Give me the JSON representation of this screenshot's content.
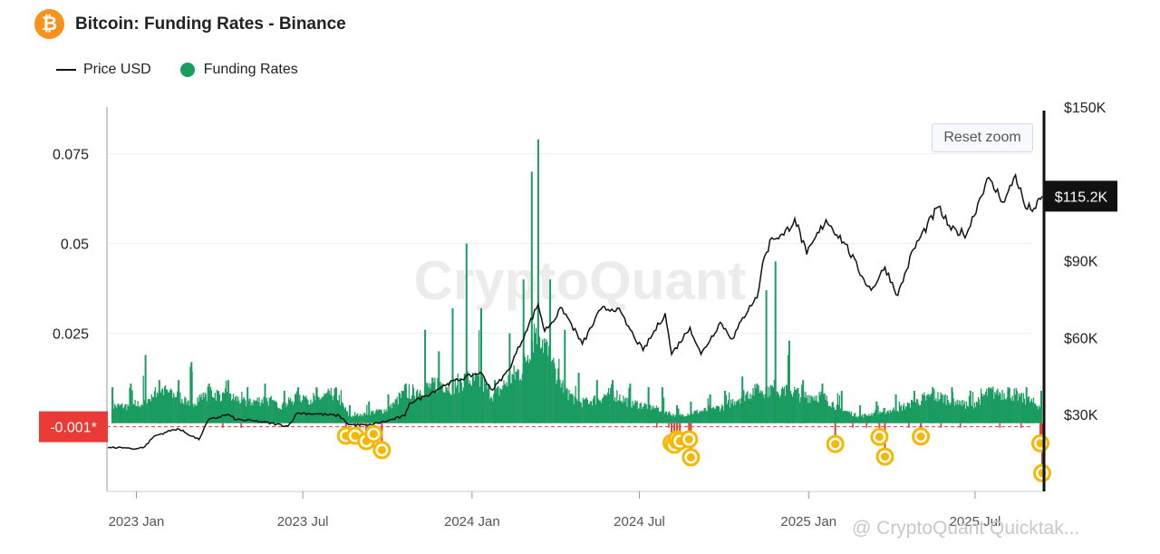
{
  "header": {
    "title": "Bitcoin: Funding Rates - Binance",
    "logo_icon": "bitcoin-icon",
    "logo_glyph": "₿"
  },
  "legend": [
    {
      "label": "Price USD",
      "type": "line",
      "color": "#111111"
    },
    {
      "label": "Funding Rates",
      "type": "dot",
      "color": "#1a9b60"
    }
  ],
  "reset_zoom_label": "Reset zoom",
  "watermark": "CryptoQuant",
  "credit": "@ CryptoQuant Quicktak...",
  "chart_data": {
    "type": "bar",
    "title": "Bitcoin: Funding Rates - Binance",
    "x_ticks": [
      "2023 Jan",
      "2023 Jul",
      "2024 Jan",
      "2024 Jul",
      "2025 Jan",
      "2025 Jul"
    ],
    "x_range": [
      "2022-11-30",
      "2025-09-12"
    ],
    "y_left": {
      "ticks": [
        0.075,
        0.05,
        0.025
      ],
      "ylim": [
        -0.019,
        0.088
      ],
      "highlight_label": "-0.001*",
      "highlight_value": -0.001
    },
    "y_right": {
      "ticks": [
        "$150K",
        "$90K",
        "$60K",
        "$30K"
      ],
      "tick_values": [
        150000,
        90000,
        60000,
        30000
      ],
      "ylim": [
        0,
        150000
      ],
      "current_value_label": "$115.2K",
      "current_value": 115200
    },
    "colors": {
      "funding_positive": "#1a9b60",
      "funding_negative": "#e0413a",
      "price": "#111111",
      "marker": "#f5b700",
      "badge_bg": "#111111",
      "highlight_bg": "#ea3a35"
    },
    "series": [
      {
        "name": "Funding Rates",
        "kind": "bars",
        "note": "daily funding rate envelope: [date, typical, peak]",
        "points": [
          [
            "2022-12-05",
            0.005,
            0.01
          ],
          [
            "2022-12-25",
            0.005,
            0.011
          ],
          [
            "2023-01-10",
            0.006,
            0.019
          ],
          [
            "2023-01-25",
            0.01,
            0.012
          ],
          [
            "2023-02-15",
            0.008,
            0.012
          ],
          [
            "2023-03-01",
            0.006,
            0.017
          ],
          [
            "2023-03-20",
            0.009,
            0.011
          ],
          [
            "2023-04-10",
            0.008,
            0.012
          ],
          [
            "2023-05-01",
            0.006,
            0.01
          ],
          [
            "2023-05-20",
            0.007,
            0.011
          ],
          [
            "2023-06-10",
            0.005,
            0.009
          ],
          [
            "2023-06-25",
            0.008,
            0.01
          ],
          [
            "2023-07-15",
            0.007,
            0.01
          ],
          [
            "2023-08-05",
            0.009,
            0.01
          ],
          [
            "2023-08-20",
            0.002,
            0.005
          ],
          [
            "2023-09-10",
            0.003,
            0.006
          ],
          [
            "2023-10-01",
            0.004,
            0.008
          ],
          [
            "2023-10-20",
            0.009,
            0.011
          ],
          [
            "2023-11-10",
            0.01,
            0.026
          ],
          [
            "2023-11-25",
            0.012,
            0.02
          ],
          [
            "2023-12-10",
            0.011,
            0.032
          ],
          [
            "2023-12-25",
            0.013,
            0.05
          ],
          [
            "2024-01-10",
            0.012,
            0.032
          ],
          [
            "2024-01-25",
            0.008,
            0.012
          ],
          [
            "2024-02-10",
            0.013,
            0.025
          ],
          [
            "2024-02-25",
            0.016,
            0.04
          ],
          [
            "2024-03-05",
            0.025,
            0.07
          ],
          [
            "2024-03-12",
            0.03,
            0.079
          ],
          [
            "2024-03-25",
            0.018,
            0.04
          ],
          [
            "2024-04-10",
            0.01,
            0.026
          ],
          [
            "2024-04-25",
            0.006,
            0.014
          ],
          [
            "2024-05-15",
            0.007,
            0.012
          ],
          [
            "2024-06-01",
            0.009,
            0.012
          ],
          [
            "2024-06-20",
            0.006,
            0.011
          ],
          [
            "2024-07-10",
            0.005,
            0.01
          ],
          [
            "2024-07-25",
            0.004,
            0.01
          ],
          [
            "2024-08-10",
            0.002,
            0.005
          ],
          [
            "2024-08-25",
            0.003,
            0.006
          ],
          [
            "2024-09-15",
            0.004,
            0.008
          ],
          [
            "2024-10-01",
            0.005,
            0.009
          ],
          [
            "2024-10-20",
            0.008,
            0.013
          ],
          [
            "2024-11-05",
            0.01,
            0.011
          ],
          [
            "2024-11-15",
            0.01,
            0.037
          ],
          [
            "2024-11-25",
            0.01,
            0.045
          ],
          [
            "2024-12-10",
            0.01,
            0.023
          ],
          [
            "2024-12-25",
            0.008,
            0.012
          ],
          [
            "2025-01-15",
            0.008,
            0.011
          ],
          [
            "2025-02-05",
            0.004,
            0.009
          ],
          [
            "2025-02-25",
            0.002,
            0.005
          ],
          [
            "2025-03-15",
            0.003,
            0.006
          ],
          [
            "2025-04-05",
            0.004,
            0.008
          ],
          [
            "2025-04-25",
            0.006,
            0.009
          ],
          [
            "2025-05-15",
            0.008,
            0.01
          ],
          [
            "2025-06-05",
            0.007,
            0.01
          ],
          [
            "2025-06-25",
            0.005,
            0.009
          ],
          [
            "2025-07-15",
            0.009,
            0.01
          ],
          [
            "2025-08-05",
            0.009,
            0.01
          ],
          [
            "2025-08-25",
            0.007,
            0.01
          ],
          [
            "2025-09-10",
            0.005,
            0.009
          ]
        ]
      },
      {
        "name": "Price USD",
        "kind": "line",
        "points": [
          [
            "2022-12-01",
            17000
          ],
          [
            "2022-12-15",
            17200
          ],
          [
            "2022-12-31",
            16600
          ],
          [
            "2023-01-10",
            17400
          ],
          [
            "2023-01-20",
            21500
          ],
          [
            "2023-02-01",
            23000
          ],
          [
            "2023-02-15",
            24500
          ],
          [
            "2023-03-10",
            20200
          ],
          [
            "2023-03-20",
            27800
          ],
          [
            "2023-04-10",
            30000
          ],
          [
            "2023-04-20",
            28000
          ],
          [
            "2023-05-10",
            27500
          ],
          [
            "2023-06-15",
            25500
          ],
          [
            "2023-06-25",
            30600
          ],
          [
            "2023-07-15",
            30300
          ],
          [
            "2023-08-10",
            29500
          ],
          [
            "2023-08-20",
            26100
          ],
          [
            "2023-09-10",
            25800
          ],
          [
            "2023-10-01",
            27500
          ],
          [
            "2023-10-20",
            29500
          ],
          [
            "2023-10-25",
            34500
          ],
          [
            "2023-11-10",
            37000
          ],
          [
            "2023-12-05",
            42000
          ],
          [
            "2024-01-10",
            46500
          ],
          [
            "2024-01-23",
            39500
          ],
          [
            "2024-02-10",
            47500
          ],
          [
            "2024-02-28",
            62000
          ],
          [
            "2024-03-13",
            73000
          ],
          [
            "2024-03-20",
            62500
          ],
          [
            "2024-04-08",
            71500
          ],
          [
            "2024-04-30",
            57500
          ],
          [
            "2024-05-20",
            71000
          ],
          [
            "2024-06-07",
            71500
          ],
          [
            "2024-06-25",
            60500
          ],
          [
            "2024-07-05",
            55000
          ],
          [
            "2024-07-29",
            69500
          ],
          [
            "2024-08-05",
            53500
          ],
          [
            "2024-08-25",
            64000
          ],
          [
            "2024-09-06",
            53500
          ],
          [
            "2024-09-27",
            66000
          ],
          [
            "2024-10-10",
            59500
          ],
          [
            "2024-10-29",
            72500
          ],
          [
            "2024-11-06",
            75500
          ],
          [
            "2024-11-12",
            89000
          ],
          [
            "2024-11-22",
            99000
          ],
          [
            "2024-12-05",
            100000
          ],
          [
            "2024-12-17",
            106500
          ],
          [
            "2024-12-30",
            92500
          ],
          [
            "2025-01-20",
            106000
          ],
          [
            "2025-02-10",
            96500
          ],
          [
            "2025-02-28",
            84000
          ],
          [
            "2025-03-10",
            78500
          ],
          [
            "2025-03-25",
            87500
          ],
          [
            "2025-04-08",
            76500
          ],
          [
            "2025-04-25",
            94500
          ],
          [
            "2025-05-22",
            111000
          ],
          [
            "2025-06-05",
            102000
          ],
          [
            "2025-06-22",
            100500
          ],
          [
            "2025-07-14",
            122000
          ],
          [
            "2025-08-02",
            113000
          ],
          [
            "2025-08-14",
            123500
          ],
          [
            "2025-08-25",
            110500
          ],
          [
            "2025-09-05",
            110500
          ],
          [
            "2025-09-12",
            115200
          ]
        ]
      },
      {
        "name": "Negative funding alerts",
        "kind": "markers",
        "points": [
          [
            "2023-08-17",
            -0.0035
          ],
          [
            "2023-08-27",
            -0.0035
          ],
          [
            "2023-09-08",
            -0.005
          ],
          [
            "2023-09-16",
            -0.003
          ],
          [
            "2023-09-25",
            -0.0075
          ],
          [
            "2024-08-05",
            -0.0055
          ],
          [
            "2024-08-08",
            -0.006
          ],
          [
            "2024-08-11",
            -0.0045
          ],
          [
            "2024-08-14",
            -0.005
          ],
          [
            "2024-08-24",
            -0.0045
          ],
          [
            "2024-08-26",
            -0.0095
          ],
          [
            "2025-01-30",
            -0.0058
          ],
          [
            "2025-03-19",
            -0.0038
          ],
          [
            "2025-03-25",
            -0.0093
          ],
          [
            "2025-05-03",
            -0.0037
          ],
          [
            "2025-09-10",
            -0.0056
          ],
          [
            "2025-09-12",
            -0.0139
          ]
        ]
      }
    ]
  }
}
